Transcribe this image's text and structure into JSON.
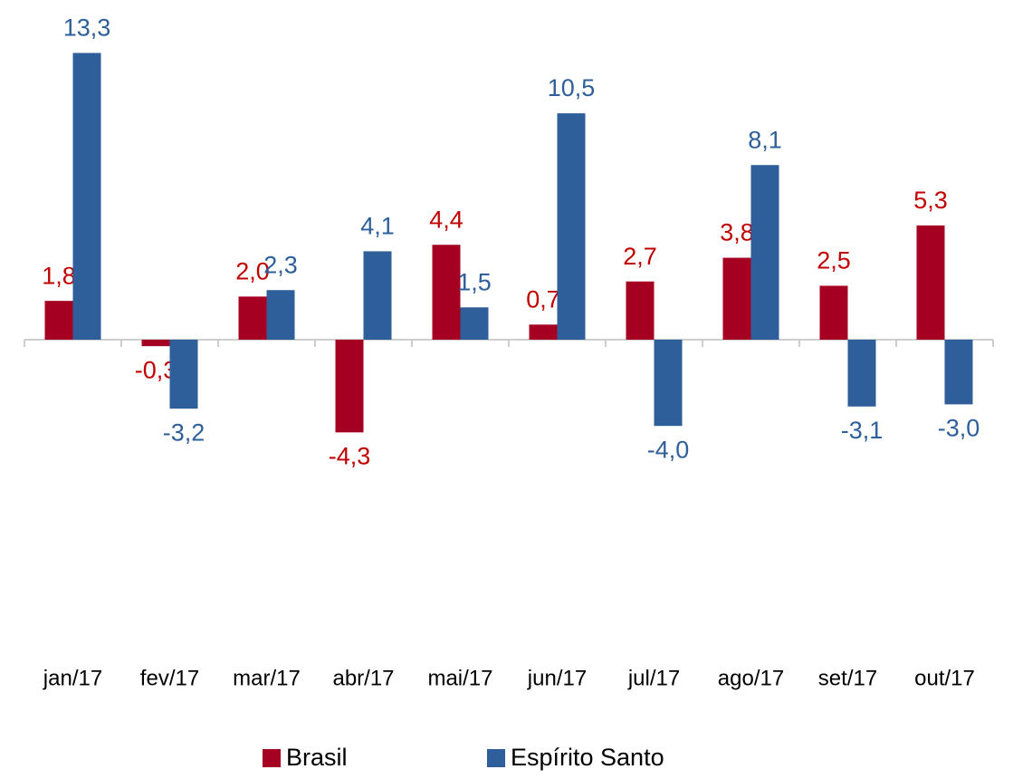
{
  "chart_data": {
    "type": "bar",
    "categories": [
      "jan/17",
      "fev/17",
      "mar/17",
      "abr/17",
      "mai/17",
      "jun/17",
      "jul/17",
      "ago/17",
      "set/17",
      "out/17"
    ],
    "series": [
      {
        "name": "Brasil",
        "color": "#a50021",
        "values": [
          1.8,
          -0.3,
          2.0,
          -4.3,
          4.4,
          0.7,
          2.7,
          3.8,
          2.5,
          5.3
        ],
        "value_labels": [
          "1,8",
          "-0,3",
          "2,0",
          "-4,3",
          "4,4",
          "0,7",
          "2,7",
          "3,8",
          "2,5",
          "5,3"
        ]
      },
      {
        "name": "Espírito Santo",
        "color": "#2e5f9a",
        "values": [
          13.3,
          -3.2,
          2.3,
          4.1,
          1.5,
          10.5,
          -4.0,
          8.1,
          -3.1,
          -3.0
        ],
        "value_labels": [
          "13,3",
          "-3,2",
          "2,3",
          "4,1",
          "1,5",
          "10,5",
          "-4,0",
          "8,1",
          "-3,1",
          "-3,0"
        ]
      }
    ]
  }
}
